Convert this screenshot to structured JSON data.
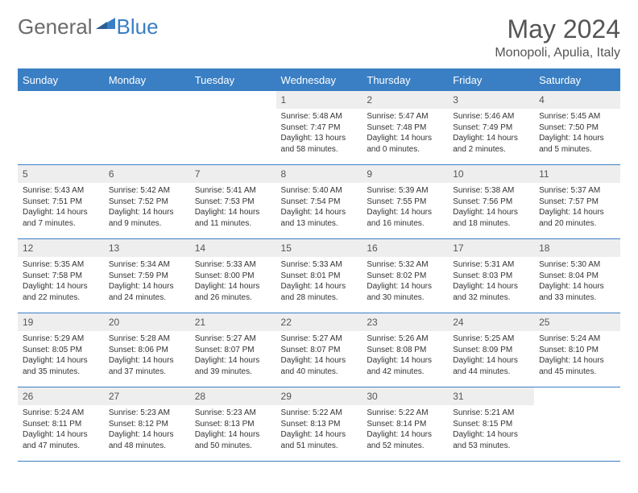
{
  "logo": {
    "general": "General",
    "blue": "Blue",
    "tri_color": "#3a7fc4"
  },
  "title": "May 2024",
  "location": "Monopoli, Apulia, Italy",
  "colors": {
    "header_bg": "#3a7fc4",
    "header_text": "#ffffff",
    "daynum_bg": "#eeeeee",
    "border": "#3a7fc4",
    "body_text": "#333333"
  },
  "weekdays": [
    "Sunday",
    "Monday",
    "Tuesday",
    "Wednesday",
    "Thursday",
    "Friday",
    "Saturday"
  ],
  "weeks": [
    [
      null,
      null,
      null,
      {
        "n": "1",
        "rise": "5:48 AM",
        "set": "7:47 PM",
        "dl": "13 hours and 58 minutes."
      },
      {
        "n": "2",
        "rise": "5:47 AM",
        "set": "7:48 PM",
        "dl": "14 hours and 0 minutes."
      },
      {
        "n": "3",
        "rise": "5:46 AM",
        "set": "7:49 PM",
        "dl": "14 hours and 2 minutes."
      },
      {
        "n": "4",
        "rise": "5:45 AM",
        "set": "7:50 PM",
        "dl": "14 hours and 5 minutes."
      }
    ],
    [
      {
        "n": "5",
        "rise": "5:43 AM",
        "set": "7:51 PM",
        "dl": "14 hours and 7 minutes."
      },
      {
        "n": "6",
        "rise": "5:42 AM",
        "set": "7:52 PM",
        "dl": "14 hours and 9 minutes."
      },
      {
        "n": "7",
        "rise": "5:41 AM",
        "set": "7:53 PM",
        "dl": "14 hours and 11 minutes."
      },
      {
        "n": "8",
        "rise": "5:40 AM",
        "set": "7:54 PM",
        "dl": "14 hours and 13 minutes."
      },
      {
        "n": "9",
        "rise": "5:39 AM",
        "set": "7:55 PM",
        "dl": "14 hours and 16 minutes."
      },
      {
        "n": "10",
        "rise": "5:38 AM",
        "set": "7:56 PM",
        "dl": "14 hours and 18 minutes."
      },
      {
        "n": "11",
        "rise": "5:37 AM",
        "set": "7:57 PM",
        "dl": "14 hours and 20 minutes."
      }
    ],
    [
      {
        "n": "12",
        "rise": "5:35 AM",
        "set": "7:58 PM",
        "dl": "14 hours and 22 minutes."
      },
      {
        "n": "13",
        "rise": "5:34 AM",
        "set": "7:59 PM",
        "dl": "14 hours and 24 minutes."
      },
      {
        "n": "14",
        "rise": "5:33 AM",
        "set": "8:00 PM",
        "dl": "14 hours and 26 minutes."
      },
      {
        "n": "15",
        "rise": "5:33 AM",
        "set": "8:01 PM",
        "dl": "14 hours and 28 minutes."
      },
      {
        "n": "16",
        "rise": "5:32 AM",
        "set": "8:02 PM",
        "dl": "14 hours and 30 minutes."
      },
      {
        "n": "17",
        "rise": "5:31 AM",
        "set": "8:03 PM",
        "dl": "14 hours and 32 minutes."
      },
      {
        "n": "18",
        "rise": "5:30 AM",
        "set": "8:04 PM",
        "dl": "14 hours and 33 minutes."
      }
    ],
    [
      {
        "n": "19",
        "rise": "5:29 AM",
        "set": "8:05 PM",
        "dl": "14 hours and 35 minutes."
      },
      {
        "n": "20",
        "rise": "5:28 AM",
        "set": "8:06 PM",
        "dl": "14 hours and 37 minutes."
      },
      {
        "n": "21",
        "rise": "5:27 AM",
        "set": "8:07 PM",
        "dl": "14 hours and 39 minutes."
      },
      {
        "n": "22",
        "rise": "5:27 AM",
        "set": "8:07 PM",
        "dl": "14 hours and 40 minutes."
      },
      {
        "n": "23",
        "rise": "5:26 AM",
        "set": "8:08 PM",
        "dl": "14 hours and 42 minutes."
      },
      {
        "n": "24",
        "rise": "5:25 AM",
        "set": "8:09 PM",
        "dl": "14 hours and 44 minutes."
      },
      {
        "n": "25",
        "rise": "5:24 AM",
        "set": "8:10 PM",
        "dl": "14 hours and 45 minutes."
      }
    ],
    [
      {
        "n": "26",
        "rise": "5:24 AM",
        "set": "8:11 PM",
        "dl": "14 hours and 47 minutes."
      },
      {
        "n": "27",
        "rise": "5:23 AM",
        "set": "8:12 PM",
        "dl": "14 hours and 48 minutes."
      },
      {
        "n": "28",
        "rise": "5:23 AM",
        "set": "8:13 PM",
        "dl": "14 hours and 50 minutes."
      },
      {
        "n": "29",
        "rise": "5:22 AM",
        "set": "8:13 PM",
        "dl": "14 hours and 51 minutes."
      },
      {
        "n": "30",
        "rise": "5:22 AM",
        "set": "8:14 PM",
        "dl": "14 hours and 52 minutes."
      },
      {
        "n": "31",
        "rise": "5:21 AM",
        "set": "8:15 PM",
        "dl": "14 hours and 53 minutes."
      },
      null
    ]
  ],
  "labels": {
    "sunrise": "Sunrise:",
    "sunset": "Sunset:",
    "daylight": "Daylight:"
  }
}
